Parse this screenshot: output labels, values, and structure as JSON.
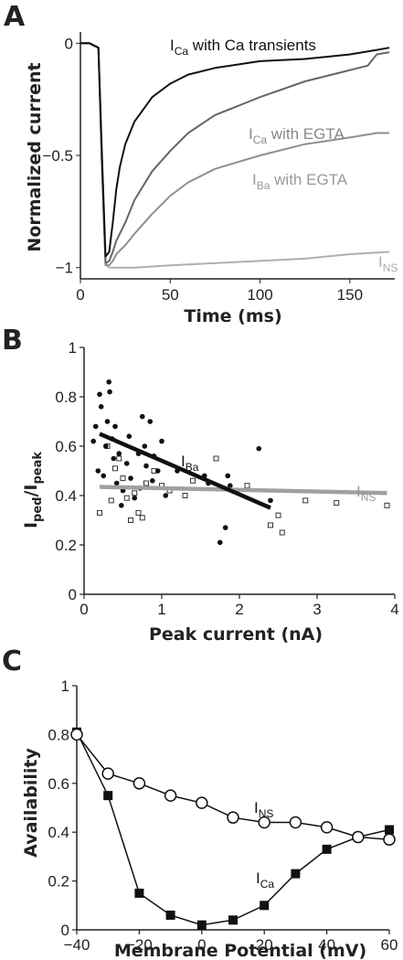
{
  "chart_data": [
    {
      "panel": "A",
      "type": "line",
      "xlabel": "Time (ms)",
      "ylabel": "Normalized current",
      "xlim": [
        0,
        175
      ],
      "ylim": [
        -1.05,
        0.05
      ],
      "xticks": [
        "0",
        "50",
        "100",
        "150"
      ],
      "yticks": [
        "0",
        "-0.5",
        "-1"
      ],
      "series": [
        {
          "name": "I_Ca with Ca transients",
          "label_main": "I",
          "label_sub": "Ca",
          "label_rest": " with Ca transients",
          "color": "#111111",
          "x": [
            0,
            5,
            10,
            12,
            14,
            16,
            18,
            20,
            22,
            25,
            30,
            40,
            50,
            60,
            75,
            100,
            125,
            150,
            165,
            172
          ],
          "y": [
            0,
            0,
            -0.02,
            -0.5,
            -0.95,
            -0.93,
            -0.8,
            -0.65,
            -0.55,
            -0.45,
            -0.35,
            -0.24,
            -0.18,
            -0.14,
            -0.11,
            -0.08,
            -0.07,
            -0.05,
            -0.03,
            -0.02
          ]
        },
        {
          "name": "I_Ca with EGTA",
          "label_main": "I",
          "label_sub": "Ca",
          "label_rest": " with EGTA",
          "color": "#666666",
          "x": [
            0,
            5,
            10,
            12,
            14,
            16,
            18,
            20,
            25,
            30,
            40,
            50,
            60,
            75,
            100,
            125,
            150,
            160,
            165,
            172
          ],
          "y": [
            0,
            0,
            -0.02,
            -0.55,
            -0.98,
            -0.97,
            -0.93,
            -0.88,
            -0.8,
            -0.7,
            -0.57,
            -0.48,
            -0.4,
            -0.32,
            -0.24,
            -0.17,
            -0.12,
            -0.1,
            -0.05,
            -0.04
          ]
        },
        {
          "name": "I_Ba with EGTA",
          "label_main": "I",
          "label_sub": "Ba",
          "label_rest": " with EGTA",
          "color": "#8f8f8f",
          "x": [
            0,
            5,
            10,
            12,
            14,
            16,
            18,
            20,
            25,
            30,
            40,
            50,
            60,
            75,
            100,
            125,
            150,
            165,
            172
          ],
          "y": [
            0,
            0,
            -0.02,
            -0.55,
            -0.99,
            -0.99,
            -0.97,
            -0.94,
            -0.9,
            -0.85,
            -0.76,
            -0.68,
            -0.62,
            -0.56,
            -0.5,
            -0.45,
            -0.42,
            -0.4,
            -0.4
          ]
        },
        {
          "name": "I_NS",
          "label_main": "I",
          "label_sub": "NS",
          "label_rest": "",
          "color": "#b0b0b0",
          "x": [
            0,
            5,
            10,
            12,
            14,
            16,
            18,
            20,
            30,
            50,
            75,
            100,
            125,
            150,
            172
          ],
          "y": [
            0,
            0,
            -0.02,
            -0.55,
            -0.98,
            -1.0,
            -1.0,
            -1.0,
            -1.0,
            -0.99,
            -0.98,
            -0.97,
            -0.96,
            -0.94,
            -0.93
          ]
        }
      ]
    },
    {
      "panel": "B",
      "type": "scatter",
      "xlabel": "Peak current (nA)",
      "ylabel_main": "I",
      "ylabel_sub1": "ped",
      "ylabel_slash": "/I",
      "ylabel_sub2": "peak",
      "xlim": [
        0,
        4
      ],
      "ylim": [
        0,
        1
      ],
      "xticks": [
        "0",
        "1",
        "2",
        "3",
        "4"
      ],
      "yticks": [
        "0",
        "0.2",
        "0.4",
        "0.6",
        "0.8",
        "1"
      ],
      "series": [
        {
          "name": "I_Ba",
          "label_main": "I",
          "label_sub": "Ba",
          "marker": "filled-circle",
          "color": "#111111",
          "points": [
            [
              0.12,
              0.62
            ],
            [
              0.15,
              0.68
            ],
            [
              0.18,
              0.5
            ],
            [
              0.2,
              0.81
            ],
            [
              0.22,
              0.76
            ],
            [
              0.25,
              0.48
            ],
            [
              0.28,
              0.6
            ],
            [
              0.3,
              0.7
            ],
            [
              0.32,
              0.86
            ],
            [
              0.33,
              0.82
            ],
            [
              0.36,
              0.63
            ],
            [
              0.38,
              0.55
            ],
            [
              0.4,
              0.68
            ],
            [
              0.42,
              0.45
            ],
            [
              0.45,
              0.57
            ],
            [
              0.48,
              0.36
            ],
            [
              0.5,
              0.42
            ],
            [
              0.55,
              0.53
            ],
            [
              0.58,
              0.64
            ],
            [
              0.6,
              0.47
            ],
            [
              0.65,
              0.39
            ],
            [
              0.7,
              0.57
            ],
            [
              0.72,
              0.43
            ],
            [
              0.75,
              0.72
            ],
            [
              0.78,
              0.6
            ],
            [
              0.8,
              0.52
            ],
            [
              0.85,
              0.7
            ],
            [
              0.88,
              0.46
            ],
            [
              0.9,
              0.56
            ],
            [
              0.95,
              0.5
            ],
            [
              1.0,
              0.62
            ],
            [
              1.05,
              0.4
            ],
            [
              1.2,
              0.5
            ],
            [
              1.55,
              0.48
            ],
            [
              1.6,
              0.45
            ],
            [
              1.75,
              0.21
            ],
            [
              1.82,
              0.27
            ],
            [
              1.85,
              0.48
            ],
            [
              1.88,
              0.44
            ],
            [
              2.25,
              0.59
            ],
            [
              2.4,
              0.38
            ]
          ],
          "fit": [
            [
              0.2,
              0.65
            ],
            [
              2.4,
              0.35
            ]
          ]
        },
        {
          "name": "I_NS",
          "label_main": "I",
          "label_sub": "NS",
          "marker": "open-square",
          "color": "#999999",
          "points": [
            [
              0.2,
              0.33
            ],
            [
              0.3,
              0.6
            ],
            [
              0.35,
              0.38
            ],
            [
              0.4,
              0.51
            ],
            [
              0.45,
              0.55
            ],
            [
              0.5,
              0.47
            ],
            [
              0.55,
              0.39
            ],
            [
              0.6,
              0.3
            ],
            [
              0.65,
              0.41
            ],
            [
              0.7,
              0.33
            ],
            [
              0.75,
              0.31
            ],
            [
              0.8,
              0.45
            ],
            [
              0.9,
              0.5
            ],
            [
              1.0,
              0.44
            ],
            [
              1.1,
              0.42
            ],
            [
              1.3,
              0.4
            ],
            [
              1.4,
              0.46
            ],
            [
              1.7,
              0.55
            ],
            [
              2.1,
              0.44
            ],
            [
              2.4,
              0.28
            ],
            [
              2.5,
              0.32
            ],
            [
              2.55,
              0.25
            ],
            [
              2.85,
              0.38
            ],
            [
              3.25,
              0.37
            ],
            [
              3.9,
              0.36
            ]
          ],
          "fit": [
            [
              0.2,
              0.435
            ],
            [
              3.9,
              0.41
            ]
          ]
        }
      ]
    },
    {
      "panel": "C",
      "type": "line",
      "xlabel": "Membrane Potential (mV)",
      "ylabel": "Availability",
      "xlim": [
        -40,
        60
      ],
      "ylim": [
        0,
        1
      ],
      "xticks": [
        "-40",
        "-20",
        "0",
        "20",
        "40",
        "60"
      ],
      "yticks": [
        "0",
        "0.2",
        "0.4",
        "0.6",
        "0.8",
        "1"
      ],
      "series": [
        {
          "name": "I_Ca",
          "label_main": "I",
          "label_sub": "Ca",
          "marker": "filled-square",
          "color": "#111111",
          "x": [
            -40,
            -30,
            -20,
            -10,
            0,
            10,
            20,
            30,
            40,
            50,
            60
          ],
          "y": [
            0.81,
            0.55,
            0.15,
            0.06,
            0.02,
            0.04,
            0.1,
            0.23,
            0.33,
            0.38,
            0.41
          ]
        },
        {
          "name": "I_NS",
          "label_main": "I",
          "label_sub": "NS",
          "marker": "open-circle",
          "color": "#111111",
          "x": [
            -40,
            -30,
            -20,
            -10,
            0,
            10,
            20,
            30,
            40,
            50,
            60
          ],
          "y": [
            0.8,
            0.64,
            0.6,
            0.55,
            0.52,
            0.46,
            0.44,
            0.44,
            0.42,
            0.38,
            0.37
          ]
        }
      ]
    }
  ],
  "panel_labels": [
    "A",
    "B",
    "C"
  ]
}
